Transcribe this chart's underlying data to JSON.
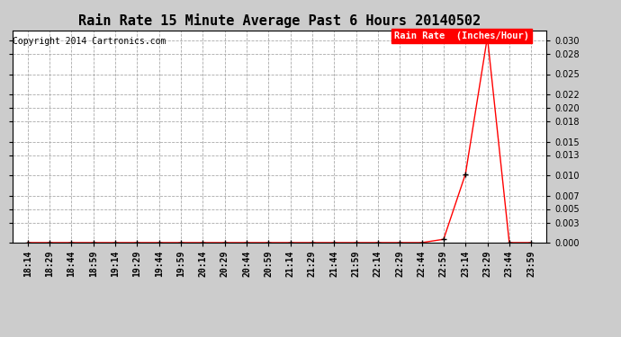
{
  "title": "Rain Rate 15 Minute Average Past 6 Hours 20140502",
  "copyright": "Copyright 2014 Cartronics.com",
  "legend_label": "Rain Rate  (Inches/Hour)",
  "x_labels": [
    "18:14",
    "18:29",
    "18:44",
    "18:59",
    "19:14",
    "19:29",
    "19:44",
    "19:59",
    "20:14",
    "20:29",
    "20:44",
    "20:59",
    "21:14",
    "21:29",
    "21:44",
    "21:59",
    "22:14",
    "22:29",
    "22:44",
    "22:59",
    "23:14",
    "23:29",
    "23:44",
    "23:59"
  ],
  "y_values": [
    0.0,
    0.0,
    0.0,
    0.0,
    0.0,
    0.0,
    0.0,
    0.0,
    0.0,
    0.0,
    0.0,
    0.0,
    0.0,
    0.0,
    0.0,
    0.0,
    0.0,
    0.0,
    0.0,
    0.0005,
    0.0102,
    0.0305,
    0.0,
    0.0
  ],
  "ylim": [
    0.0,
    0.0315
  ],
  "yticks": [
    0.0,
    0.003,
    0.005,
    0.007,
    0.01,
    0.013,
    0.015,
    0.018,
    0.02,
    0.022,
    0.025,
    0.028,
    0.03
  ],
  "line_color": "red",
  "marker_color": "black",
  "bg_color": "#cccccc",
  "plot_bg_color": "#ffffff",
  "grid_color": "#aaaaaa",
  "title_fontsize": 11,
  "tick_fontsize": 7,
  "copyright_fontsize": 7,
  "legend_bg_color": "red",
  "legend_text_color": "white",
  "legend_fontsize": 7.5,
  "fig_width": 6.9,
  "fig_height": 3.75,
  "dpi": 100
}
